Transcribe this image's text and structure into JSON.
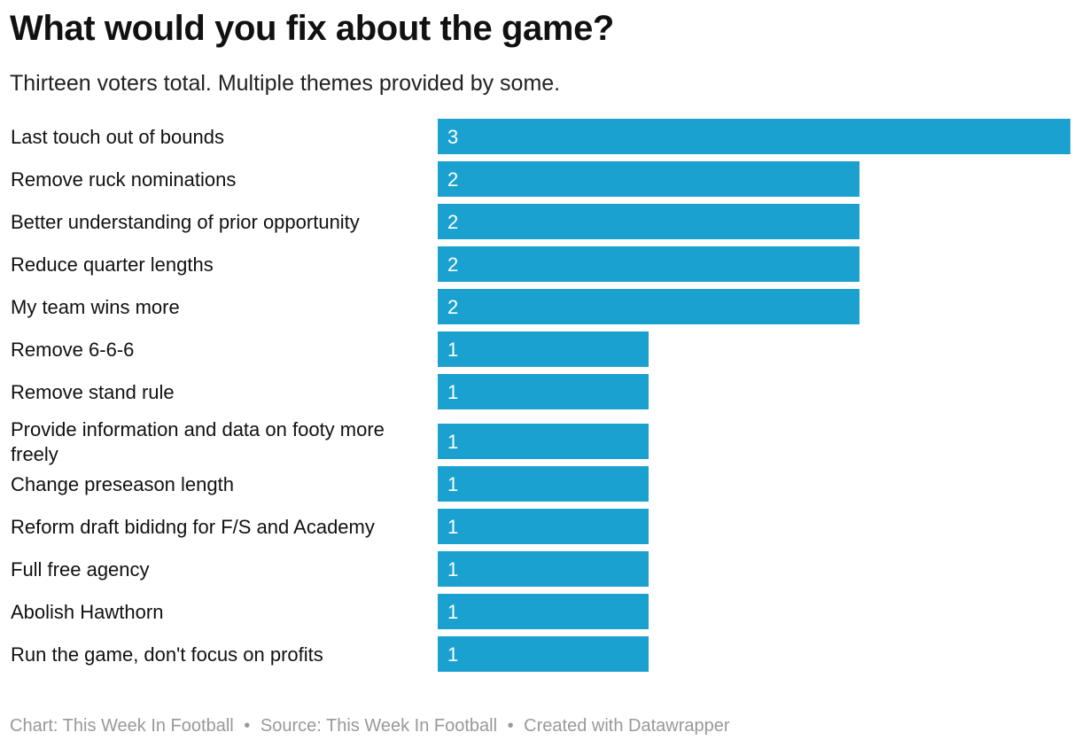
{
  "title": "What would you fix about the game?",
  "subtitle": "Thirteen voters total. Multiple themes provided by some.",
  "footer": {
    "chart_label": "Chart: This Week In Football",
    "separator": "•",
    "source_label": "Source: This Week In Football",
    "credit_label": "Created with Datawrapper"
  },
  "colors": {
    "bar": "#1aa1cf",
    "bar_label": "#ffffff",
    "category_text": "#111111"
  },
  "chart_data": {
    "type": "bar",
    "orientation": "horizontal",
    "title": "What would you fix about the game?",
    "subtitle": "Thirteen voters total. Multiple themes provided by some.",
    "categories": [
      "Last touch out of bounds",
      "Remove ruck nominations",
      "Better understanding of prior opportunity",
      "Reduce quarter lengths",
      "My team wins more",
      "Remove 6-6-6",
      "Remove stand rule",
      "Provide information and data on footy more freely",
      "Change preseason length",
      "Reform draft bididng for F/S and Academy",
      "Full free agency",
      "Abolish Hawthorn",
      "Run the game, don't focus on profits"
    ],
    "values": [
      3,
      2,
      2,
      2,
      2,
      1,
      1,
      1,
      1,
      1,
      1,
      1,
      1
    ],
    "xlim": [
      0,
      3
    ],
    "grid": false,
    "data_labels": "inside-start"
  }
}
